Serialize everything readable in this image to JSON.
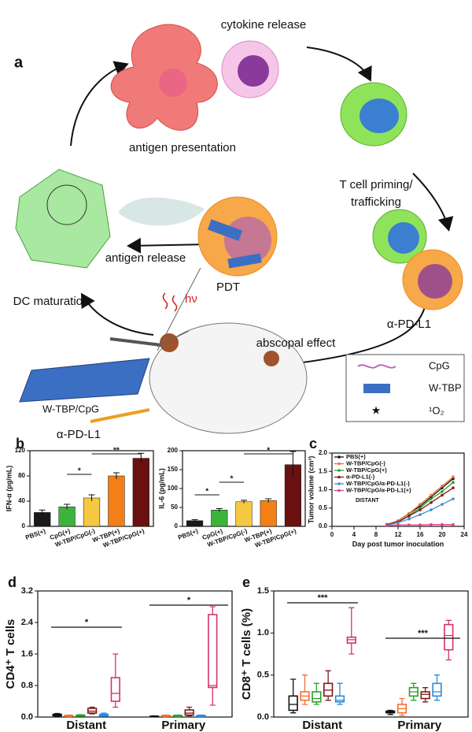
{
  "diagram": {
    "panel_label": "a",
    "cytokine": "cytokine release",
    "presentation": "antigen presentation",
    "priming_1": "T cell priming/",
    "priming_2": "trafficking",
    "pdl1_right": "α-PD-L1",
    "antigen_release": "antigen release",
    "dc": "DC maturation",
    "pdt": "PDT",
    "light": "hν",
    "abscopal": "abscopal effect",
    "wtbp_cpg": "W-TBP/CpG",
    "pdl1_left": "α-PD-L1",
    "legend": [
      "CpG",
      "W-TBP",
      "¹O₂"
    ]
  },
  "chart_data": [
    {
      "type": "bar",
      "panel_label": "b",
      "ylabel": "IFN-α (pg/mL)",
      "categories": [
        "PBS(+)",
        "CpG(+)",
        "W-TBP/CpG(-)",
        "W-TBP(+)",
        "W-TBP/CpG(+)"
      ],
      "values": [
        22,
        31,
        45,
        80,
        108
      ],
      "errors": [
        4,
        4,
        5,
        5,
        8
      ],
      "colors": [
        "#1a1a1a",
        "#3cb43c",
        "#f5c842",
        "#f57f17",
        "#6b1010"
      ],
      "ylim": [
        0,
        120
      ],
      "yticks": [
        0,
        40,
        80,
        120
      ],
      "annotations": [
        "*",
        "**"
      ]
    },
    {
      "type": "bar",
      "ylabel": "IL-6 (pg/mL)",
      "categories": [
        "PBS(+)",
        "CpG(+)",
        "W-TBP/CpG(-)",
        "W-TBP(+)",
        "W-TBP/CpG(+)"
      ],
      "values": [
        15,
        43,
        65,
        68,
        163
      ],
      "errors": [
        3,
        4,
        4,
        5,
        35
      ],
      "colors": [
        "#1a1a1a",
        "#3cb43c",
        "#f5c842",
        "#f57f17",
        "#6b1010"
      ],
      "ylim": [
        0,
        200
      ],
      "yticks": [
        0,
        50,
        100,
        150,
        200
      ],
      "annotations": [
        "*",
        "*",
        "*"
      ]
    },
    {
      "type": "line",
      "panel_label": "c",
      "ylabel": "Tumor volume (cm³)",
      "xlabel": "Day post tumor inoculation",
      "annotation": "DISTANT",
      "legend": "upper left",
      "x": [
        10,
        12,
        14,
        16,
        18,
        20,
        22
      ],
      "series": [
        {
          "name": "PBS(+)",
          "color": "#111111",
          "values": [
            0.05,
            0.15,
            0.35,
            0.55,
            0.8,
            1.05,
            1.3
          ]
        },
        {
          "name": "W-TBP/CpG(-)",
          "color": "#f07030",
          "values": [
            0.05,
            0.15,
            0.35,
            0.6,
            0.85,
            1.1,
            1.35
          ]
        },
        {
          "name": "W-TBP/CpG(+)",
          "color": "#2ca02c",
          "values": [
            0.05,
            0.12,
            0.3,
            0.5,
            0.75,
            0.95,
            1.2
          ]
        },
        {
          "name": "α-PD-L1(-)",
          "color": "#8b1a1a",
          "values": [
            0.05,
            0.12,
            0.28,
            0.45,
            0.65,
            0.85,
            1.05
          ]
        },
        {
          "name": "W-TBP/CpG/α-PD-L1(-)",
          "color": "#3a8fd9",
          "values": [
            0.04,
            0.1,
            0.2,
            0.32,
            0.45,
            0.6,
            0.75
          ]
        },
        {
          "name": "W-TBP/CpG/α-PD-L1(+)",
          "color": "#e0408a",
          "values": [
            0.03,
            0.04,
            0.04,
            0.04,
            0.05,
            0.05,
            0.05
          ]
        }
      ],
      "xlim": [
        0,
        24
      ],
      "xticks": [
        0,
        4,
        8,
        12,
        16,
        20,
        24
      ],
      "ylim": [
        0,
        2
      ],
      "yticks": [
        {
          "value": 0,
          "label": "0.0"
        },
        0.5,
        {
          "value": 1,
          "label": "1.0"
        },
        1.5,
        {
          "value": 2,
          "label": "2.0"
        }
      ]
    },
    {
      "type": "box",
      "panel_label": "d",
      "ylabel": "CD4⁺ T cells",
      "categories": [
        "Distant",
        "Primary"
      ],
      "series": [
        {
          "color": "#111111",
          "values": [
            [
              0.02,
              0.03,
              0.05,
              0.07,
              0.09
            ],
            [
              0.01,
              0.01,
              0.02,
              0.02,
              0.03
            ]
          ]
        },
        {
          "color": "#f07030",
          "values": [
            [
              0.01,
              0.02,
              0.03,
              0.04,
              0.05
            ],
            [
              0.01,
              0.02,
              0.03,
              0.04,
              0.05
            ]
          ]
        },
        {
          "color": "#2ca02c",
          "values": [
            [
              0.02,
              0.03,
              0.04,
              0.05,
              0.06
            ],
            [
              0.01,
              0.02,
              0.03,
              0.04,
              0.05
            ]
          ]
        },
        {
          "color": "#7b1a1a",
          "values": [
            [
              0.08,
              0.1,
              0.15,
              0.22,
              0.25
            ],
            [
              0.03,
              0.05,
              0.1,
              0.18,
              0.25
            ]
          ]
        },
        {
          "color": "#2b8ad8",
          "values": [
            [
              0.02,
              0.03,
              0.05,
              0.07,
              0.1
            ],
            [
              0.01,
              0.02,
              0.03,
              0.04,
              0.05
            ]
          ]
        },
        {
          "color": "#d6336c",
          "values": [
            [
              0.25,
              0.4,
              0.6,
              1.0,
              1.6
            ],
            [
              0.3,
              0.75,
              0.8,
              2.6,
              2.8
            ]
          ]
        }
      ],
      "ylim": [
        0,
        3.2
      ],
      "yticks": [
        {
          "value": 0,
          "label": "0.0"
        },
        0.8,
        1.6,
        2.4,
        3.2
      ],
      "annotations": [
        "*",
        "*"
      ]
    },
    {
      "type": "box",
      "panel_label": "e",
      "ylabel": "CD8⁺ T cells (%)",
      "categories": [
        "Distant",
        "Primary"
      ],
      "series": [
        {
          "color": "#111111",
          "values": [
            [
              0.05,
              0.08,
              0.15,
              0.25,
              0.45
            ],
            [
              0.03,
              0.05,
              0.06,
              0.07,
              0.08
            ]
          ]
        },
        {
          "color": "#f07030",
          "values": [
            [
              0.15,
              0.2,
              0.25,
              0.3,
              0.5
            ],
            [
              0.02,
              0.05,
              0.1,
              0.15,
              0.22
            ]
          ]
        },
        {
          "color": "#2ca02c",
          "values": [
            [
              0.15,
              0.18,
              0.22,
              0.3,
              0.4
            ],
            [
              0.2,
              0.25,
              0.3,
              0.35,
              0.4
            ]
          ]
        },
        {
          "color": "#7b1a1a",
          "values": [
            [
              0.2,
              0.25,
              0.32,
              0.4,
              0.55
            ],
            [
              0.18,
              0.22,
              0.27,
              0.3,
              0.35
            ]
          ]
        },
        {
          "color": "#2b8ad8",
          "values": [
            [
              0.15,
              0.18,
              0.2,
              0.25,
              0.4
            ],
            [
              0.2,
              0.25,
              0.3,
              0.4,
              0.5
            ]
          ]
        },
        {
          "color": "#d6336c",
          "values": [
            [
              0.75,
              0.88,
              0.92,
              0.95,
              1.3
            ],
            [
              0.68,
              0.8,
              0.97,
              1.1,
              1.15
            ]
          ]
        }
      ],
      "ylim": [
        0,
        1.5
      ],
      "yticks": [
        {
          "value": 0,
          "label": "0.0"
        },
        0.5,
        {
          "value": 1,
          "label": "1.0"
        },
        1.5
      ],
      "annotations": [
        "***",
        "***"
      ]
    }
  ]
}
